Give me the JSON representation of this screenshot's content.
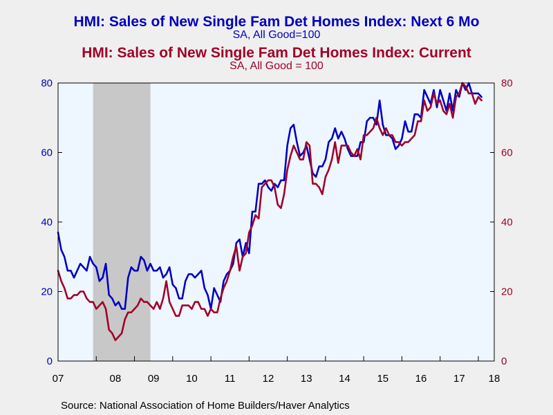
{
  "titles": {
    "line1": "HMI: Sales of New Single Fam Det Homes Index: Next 6 Mo",
    "line1_sub": "SA, All Good=100",
    "line2": "HMI: Sales of New Single Fam Det Homes Index: Current",
    "line2_sub": "SA, All Good = 100"
  },
  "source": "Source:  National Association of Home Builders/Haver Analytics",
  "colors": {
    "series1": "#0000c0",
    "series2": "#a00028",
    "plot_bg": "#eef6ff",
    "recession": "#c8c8c8",
    "page_bg": "#efefef"
  },
  "chart_data": {
    "type": "line",
    "x_start": "2007-01",
    "x_end": "2018-06",
    "x_tick_labels": [
      "07",
      "08",
      "09",
      "10",
      "11",
      "12",
      "13",
      "14",
      "15",
      "16",
      "17",
      "18"
    ],
    "ylim_left": [
      0,
      80
    ],
    "ylim_right": [
      0,
      80
    ],
    "y_ticks": [
      0,
      20,
      40,
      60,
      80
    ],
    "recession_shading": [
      {
        "start": "2007-12",
        "end": "2009-06"
      }
    ],
    "grid": false,
    "series": [
      {
        "name": "HMI: Sales of New Single Fam Det Homes Index: Next 6 Mo",
        "axis": "left",
        "color": "#0000c0",
        "values": [
          37,
          32,
          30,
          26,
          26,
          24,
          26,
          28,
          27,
          26,
          30,
          28,
          27,
          23,
          24,
          28,
          19,
          18,
          16,
          17,
          15,
          15,
          24,
          27,
          26,
          26,
          30,
          29,
          26,
          28,
          26,
          26,
          27,
          24,
          25,
          27,
          22,
          21,
          18,
          18,
          23,
          25,
          25,
          24,
          25,
          26,
          21,
          19,
          15,
          21,
          19,
          17,
          23,
          25,
          26,
          28,
          34,
          35,
          30,
          34,
          31,
          43,
          43,
          51,
          51,
          52,
          50,
          49,
          51,
          50,
          52,
          52,
          62,
          67,
          68,
          63,
          59,
          60,
          62,
          58,
          54,
          53,
          56,
          56,
          58,
          63,
          64,
          67,
          64,
          66,
          64,
          61,
          59,
          59,
          59,
          63,
          63,
          69,
          70,
          70,
          68,
          75,
          68,
          65,
          65,
          64,
          61,
          62,
          64,
          69,
          66,
          66,
          71,
          71,
          70,
          78,
          76,
          74,
          78,
          73,
          78,
          75,
          72,
          77,
          72,
          78,
          76,
          80,
          78,
          80,
          77,
          77,
          77,
          76
        ]
      },
      {
        "name": "HMI: Sales of New Single Fam Det Homes Index: Current",
        "axis": "right",
        "color": "#a00028",
        "values": [
          26,
          23,
          21,
          18,
          18,
          19,
          19,
          20,
          20,
          18,
          17,
          17,
          15,
          16,
          17,
          15,
          9,
          8,
          6,
          7,
          8,
          12,
          14,
          14,
          15,
          16,
          18,
          17,
          17,
          16,
          15,
          17,
          15,
          18,
          23,
          17,
          15,
          13,
          13,
          16,
          16,
          16,
          15,
          17,
          17,
          15,
          15,
          13,
          15,
          14,
          14,
          18,
          21,
          23,
          26,
          30,
          33,
          26,
          30,
          31,
          37,
          39,
          42,
          41,
          50,
          51,
          52,
          52,
          50,
          45,
          44,
          48,
          55,
          59,
          62,
          60,
          58,
          58,
          63,
          62,
          51,
          51,
          50,
          48,
          53,
          55,
          58,
          63,
          57,
          62,
          62,
          62,
          60,
          59,
          61,
          58,
          65,
          65,
          66,
          67,
          70,
          67,
          65,
          67,
          65,
          65,
          63,
          63,
          62,
          63,
          63,
          64,
          65,
          69,
          69,
          75,
          72,
          73,
          77,
          74,
          75,
          72,
          71,
          74,
          70,
          76,
          77,
          80,
          79,
          77,
          77,
          74,
          76,
          75
        ]
      }
    ]
  }
}
